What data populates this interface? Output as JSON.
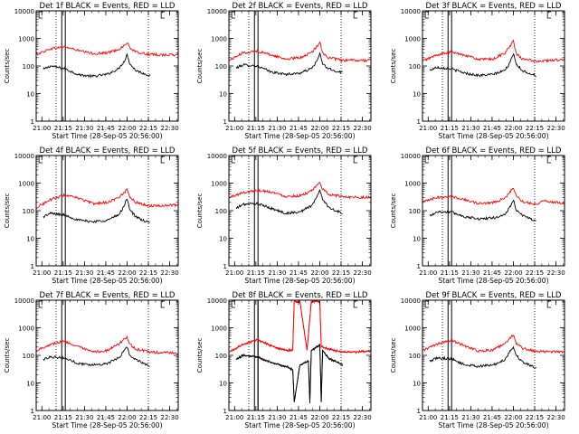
{
  "time_ticks": [
    "21:00",
    "21:15",
    "21:30",
    "21:45",
    "22:00",
    "22:15",
    "22:30"
  ],
  "y_ticks": [
    "1",
    "10",
    "100",
    "1000",
    "10000"
  ],
  "ylabel": "Counts/sec",
  "xlabel": "Start Time (28-Sep-05 20:56:00)",
  "colors": {
    "events": "#000000",
    "lld": "#ff0000"
  },
  "chart_data": [
    {
      "type": "line",
      "title": "Det 1f BLACK = Events, RED = LLD",
      "xlabel": "Start Time (28-Sep-05 20:56:00)",
      "ylabel": "Counts/sec",
      "ylim": [
        1,
        10000
      ],
      "y_scale": "log",
      "x_range_min": [
        0,
        100
      ],
      "flare_peak_min": 64,
      "series": [
        {
          "name": "Events",
          "color": "black",
          "x": [
            5,
            10,
            20,
            30,
            40,
            50,
            58,
            62,
            64,
            66,
            70,
            75,
            80
          ],
          "y": [
            75,
            100,
            80,
            48,
            42,
            50,
            80,
            150,
            260,
            120,
            70,
            55,
            45
          ]
        },
        {
          "name": "LLD",
          "color": "red",
          "x": [
            0,
            10,
            20,
            30,
            40,
            50,
            58,
            62,
            64,
            66,
            70,
            80,
            100
          ],
          "y": [
            260,
            420,
            500,
            360,
            280,
            300,
            400,
            550,
            700,
            460,
            320,
            260,
            250
          ]
        }
      ]
    },
    {
      "type": "line",
      "title": "Det 2f BLACK = Events, RED = LLD",
      "xlabel": "Start Time (28-Sep-05 20:56:00)",
      "ylabel": "Counts/sec",
      "ylim": [
        1,
        10000
      ],
      "y_scale": "log",
      "x_range_min": [
        0,
        100
      ],
      "flare_peak_min": 64,
      "series": [
        {
          "name": "Events",
          "color": "black",
          "x": [
            5,
            10,
            20,
            30,
            40,
            50,
            58,
            62,
            64,
            66,
            70,
            75,
            80
          ],
          "y": [
            85,
            110,
            100,
            60,
            50,
            55,
            80,
            150,
            280,
            120,
            80,
            65,
            60
          ]
        },
        {
          "name": "LLD",
          "color": "red",
          "x": [
            0,
            10,
            20,
            30,
            40,
            50,
            58,
            62,
            64,
            66,
            70,
            80,
            100
          ],
          "y": [
            160,
            300,
            350,
            250,
            180,
            200,
            300,
            500,
            800,
            300,
            200,
            160,
            160
          ]
        }
      ]
    },
    {
      "type": "line",
      "title": "Det 3f BLACK = Events, RED = LLD",
      "xlabel": "Start Time (28-Sep-05 20:56:00)",
      "ylabel": "Counts/sec",
      "ylim": [
        1,
        10000
      ],
      "y_scale": "log",
      "x_range_min": [
        0,
        100
      ],
      "flare_peak_min": 64,
      "series": [
        {
          "name": "Events",
          "color": "black",
          "x": [
            5,
            10,
            20,
            30,
            40,
            50,
            58,
            62,
            64,
            66,
            70,
            75,
            80
          ],
          "y": [
            70,
            90,
            80,
            55,
            45,
            50,
            70,
            140,
            300,
            120,
            70,
            55,
            45
          ]
        },
        {
          "name": "LLD",
          "color": "red",
          "x": [
            0,
            10,
            20,
            30,
            40,
            50,
            58,
            62,
            64,
            66,
            70,
            80,
            100
          ],
          "y": [
            150,
            250,
            320,
            250,
            170,
            180,
            300,
            550,
            800,
            280,
            180,
            150,
            170
          ]
        }
      ]
    },
    {
      "type": "line",
      "title": "Det 4f BLACK = Events, RED = LLD",
      "xlabel": "Start Time (28-Sep-05 20:56:00)",
      "ylabel": "Counts/sec",
      "ylim": [
        1,
        10000
      ],
      "y_scale": "log",
      "x_range_min": [
        0,
        100
      ],
      "flare_peak_min": 64,
      "series": [
        {
          "name": "Events",
          "color": "black",
          "x": [
            5,
            10,
            20,
            30,
            40,
            50,
            58,
            62,
            64,
            66,
            70,
            75,
            80
          ],
          "y": [
            60,
            80,
            70,
            45,
            40,
            45,
            70,
            150,
            280,
            110,
            60,
            45,
            35
          ]
        },
        {
          "name": "LLD",
          "color": "red",
          "x": [
            0,
            10,
            20,
            30,
            40,
            50,
            58,
            62,
            64,
            66,
            70,
            80,
            100
          ],
          "y": [
            130,
            250,
            370,
            280,
            180,
            200,
            300,
            450,
            600,
            320,
            200,
            150,
            160
          ]
        }
      ]
    },
    {
      "type": "line",
      "title": "Det 5f BLACK = Events, RED = LLD",
      "xlabel": "Start Time (28-Sep-05 20:56:00)",
      "ylabel": "Counts/sec",
      "ylim": [
        1,
        10000
      ],
      "y_scale": "log",
      "x_range_min": [
        0,
        100
      ],
      "flare_peak_min": 64,
      "series": [
        {
          "name": "Events",
          "color": "black",
          "x": [
            5,
            10,
            20,
            30,
            40,
            50,
            58,
            62,
            64,
            66,
            70,
            75,
            80
          ],
          "y": [
            120,
            170,
            180,
            120,
            80,
            90,
            150,
            300,
            600,
            250,
            140,
            100,
            80
          ]
        },
        {
          "name": "LLD",
          "color": "red",
          "x": [
            0,
            10,
            20,
            30,
            40,
            50,
            58,
            62,
            64,
            66,
            70,
            80,
            100
          ],
          "y": [
            300,
            450,
            550,
            480,
            330,
            350,
            500,
            800,
            1100,
            600,
            400,
            320,
            300
          ]
        }
      ]
    },
    {
      "type": "line",
      "title": "Det 6f BLACK = Events, RED = LLD",
      "xlabel": "Start Time (28-Sep-05 20:56:00)",
      "ylabel": "Counts/sec",
      "ylim": [
        1,
        10000
      ],
      "y_scale": "log",
      "x_range_min": [
        0,
        100
      ],
      "flare_peak_min": 64,
      "series": [
        {
          "name": "Events",
          "color": "black",
          "x": [
            5,
            10,
            20,
            30,
            40,
            50,
            58,
            62,
            64,
            66,
            70,
            75,
            80
          ],
          "y": [
            65,
            90,
            90,
            60,
            50,
            55,
            70,
            150,
            250,
            100,
            70,
            55,
            40
          ]
        },
        {
          "name": "LLD",
          "color": "red",
          "x": [
            0,
            10,
            20,
            30,
            40,
            50,
            58,
            62,
            64,
            66,
            70,
            80,
            85,
            100
          ],
          "y": [
            200,
            300,
            330,
            250,
            180,
            200,
            280,
            500,
            700,
            350,
            220,
            170,
            230,
            180
          ]
        }
      ]
    },
    {
      "type": "line",
      "title": "Det 7f BLACK = Events, RED = LLD",
      "xlabel": "Start Time (28-Sep-05 20:56:00)",
      "ylabel": "Counts/sec",
      "ylim": [
        1,
        10000
      ],
      "y_scale": "log",
      "x_range_min": [
        0,
        100
      ],
      "flare_peak_min": 64,
      "series": [
        {
          "name": "Events",
          "color": "black",
          "x": [
            5,
            10,
            20,
            30,
            40,
            50,
            58,
            62,
            64,
            66,
            70,
            75,
            80
          ],
          "y": [
            70,
            90,
            80,
            50,
            45,
            50,
            80,
            150,
            200,
            100,
            70,
            55,
            40
          ]
        },
        {
          "name": "LLD",
          "color": "red",
          "x": [
            0,
            10,
            20,
            30,
            40,
            50,
            58,
            62,
            64,
            66,
            70,
            80,
            100
          ],
          "y": [
            150,
            250,
            330,
            200,
            130,
            150,
            250,
            400,
            450,
            250,
            170,
            130,
            120
          ]
        }
      ]
    },
    {
      "type": "line",
      "title": "Det 8f BLACK = Events, RED = LLD",
      "xlabel": "Start Time (28-Sep-05 20:56:00)",
      "ylabel": "Counts/sec",
      "ylim": [
        1,
        10000
      ],
      "y_scale": "log",
      "x_range_min": [
        0,
        100
      ],
      "flare_peak_min": 64,
      "series": [
        {
          "name": "Events",
          "color": "black",
          "x": [
            5,
            10,
            20,
            30,
            40,
            45,
            46,
            50,
            56,
            57,
            58,
            62,
            64,
            65,
            66,
            70,
            75,
            80
          ],
          "y": [
            70,
            100,
            90,
            55,
            40,
            30,
            2,
            45,
            60,
            2,
            150,
            200,
            250,
            2,
            150,
            80,
            60,
            45
          ]
        },
        {
          "name": "LLD",
          "color": "red",
          "x": [
            0,
            10,
            20,
            30,
            40,
            45,
            46,
            50,
            55,
            58,
            62,
            64,
            65,
            66,
            70,
            80,
            100
          ],
          "y": [
            130,
            250,
            380,
            220,
            150,
            160,
            9000,
            9000,
            150,
            9000,
            9000,
            9000,
            200,
            200,
            170,
            130,
            140
          ]
        }
      ]
    },
    {
      "type": "line",
      "title": "Det 9f BLACK = Events, RED = LLD",
      "xlabel": "Start Time (28-Sep-05 20:56:00)",
      "ylabel": "Counts/sec",
      "ylim": [
        1,
        10000
      ],
      "y_scale": "log",
      "x_range_min": [
        0,
        100
      ],
      "flare_peak_min": 64,
      "series": [
        {
          "name": "Events",
          "color": "black",
          "x": [
            5,
            10,
            20,
            30,
            40,
            50,
            58,
            62,
            64,
            66,
            70,
            75,
            80
          ],
          "y": [
            60,
            80,
            75,
            45,
            40,
            45,
            70,
            150,
            200,
            100,
            60,
            45,
            35
          ]
        },
        {
          "name": "LLD",
          "color": "red",
          "x": [
            0,
            10,
            20,
            30,
            40,
            50,
            58,
            62,
            64,
            66,
            70,
            80,
            100
          ],
          "y": [
            150,
            250,
            350,
            220,
            140,
            160,
            260,
            450,
            550,
            280,
            180,
            140,
            130
          ]
        }
      ]
    }
  ]
}
